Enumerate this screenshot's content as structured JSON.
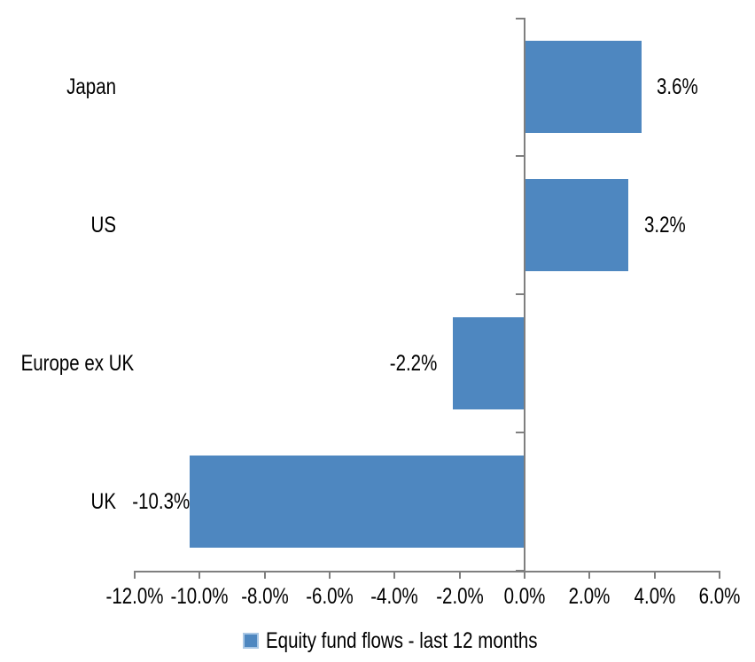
{
  "chart_data": {
    "type": "bar",
    "orientation": "horizontal",
    "title": "",
    "categories": [
      "Japan",
      "US",
      "Europe ex UK",
      "UK"
    ],
    "series": [
      {
        "name": "Equity fund flows - last 12 months",
        "values": [
          3.6,
          3.2,
          -2.2,
          -10.3
        ],
        "value_labels": [
          "3.6%",
          "3.2%",
          "-2.2%",
          "-10.3%"
        ]
      }
    ],
    "xlim": [
      -12,
      6
    ],
    "x_ticks": [
      -12,
      -10,
      -8,
      -6,
      -4,
      -2,
      0,
      2,
      4,
      6
    ],
    "x_tick_labels": [
      "-12.0%",
      "-10.0%",
      "-8.0%",
      "-6.0%",
      "-4.0%",
      "-2.0%",
      "0.0%",
      "2.0%",
      "4.0%",
      "6.0%"
    ],
    "grid": false,
    "legend_position": "bottom",
    "legend": [
      {
        "label": "Equity fund flows - last 12 months",
        "color": "#4e87c0"
      }
    ],
    "bar_color": "#4e87c0",
    "axis_color": "#7f7f7f",
    "text_color": "#000000"
  }
}
